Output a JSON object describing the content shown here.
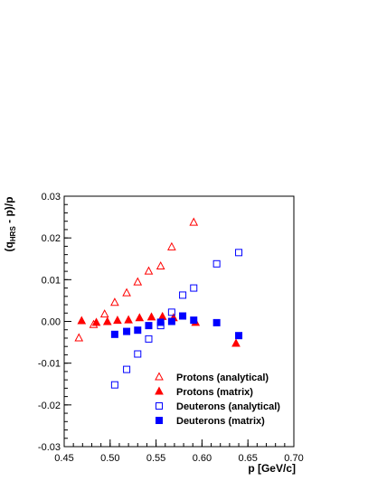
{
  "chart_data": {
    "type": "scatter",
    "xlabel": "p [GeV/c]",
    "ylabel": {
      "prefix": "(q",
      "subscript": "HRS",
      "suffix": " - p)/p"
    },
    "xlim": [
      0.45,
      0.7
    ],
    "ylim": [
      -0.03,
      0.03
    ],
    "x_ticks": [
      0.45,
      0.5,
      0.55,
      0.6,
      0.65,
      0.7
    ],
    "x_tick_labels": [
      "0.45",
      "0.50",
      "0.55",
      "0.60",
      "0.65",
      "0.70"
    ],
    "y_ticks": [
      -0.03,
      -0.02,
      -0.01,
      0.0,
      0.01,
      0.02,
      0.03
    ],
    "y_tick_labels": [
      "-0.03",
      "-0.02",
      "-0.01",
      "0.00",
      "0.01",
      "0.02",
      "0.03"
    ],
    "grid": false,
    "legend_position": "bottom-right",
    "series": [
      {
        "name": "Protons (analytical)",
        "marker": "open-triangle",
        "color": "#ff0000",
        "points": [
          [
            0.466,
            -0.004
          ],
          [
            0.482,
            -0.0008
          ],
          [
            0.494,
            0.0017
          ],
          [
            0.505,
            0.0045
          ],
          [
            0.518,
            0.0068
          ],
          [
            0.53,
            0.0094
          ],
          [
            0.542,
            0.012
          ],
          [
            0.555,
            0.0132
          ],
          [
            0.567,
            0.0178
          ],
          [
            0.591,
            0.0237
          ]
        ]
      },
      {
        "name": "Protons (matrix)",
        "marker": "filled-triangle",
        "color": "#ff0000",
        "points": [
          [
            0.469,
            0.0001
          ],
          [
            0.485,
            -0.0003
          ],
          [
            0.497,
            -0.0001
          ],
          [
            0.508,
            0.0002
          ],
          [
            0.52,
            0.0003
          ],
          [
            0.532,
            0.0008
          ],
          [
            0.545,
            0.001
          ],
          [
            0.557,
            0.0011
          ],
          [
            0.569,
            0.0008
          ],
          [
            0.593,
            -0.0003
          ],
          [
            0.637,
            -0.0053
          ]
        ]
      },
      {
        "name": "Deuterons (analytical)",
        "marker": "open-square",
        "color": "#0000ff",
        "points": [
          [
            0.505,
            -0.0152
          ],
          [
            0.518,
            -0.0115
          ],
          [
            0.53,
            -0.0078
          ],
          [
            0.542,
            -0.0042
          ],
          [
            0.555,
            -0.001
          ],
          [
            0.567,
            0.0022
          ],
          [
            0.579,
            0.0063
          ],
          [
            0.591,
            0.008
          ],
          [
            0.616,
            0.0138
          ],
          [
            0.64,
            0.0165
          ]
        ]
      },
      {
        "name": "Deuterons (matrix)",
        "marker": "filled-square",
        "color": "#0000ff",
        "points": [
          [
            0.505,
            -0.0031
          ],
          [
            0.518,
            -0.0024
          ],
          [
            0.53,
            -0.0021
          ],
          [
            0.542,
            -0.001
          ],
          [
            0.555,
            -0.0002
          ],
          [
            0.567,
            0.0
          ],
          [
            0.579,
            0.0013
          ],
          [
            0.591,
            0.0003
          ],
          [
            0.616,
            -0.0003
          ],
          [
            0.64,
            -0.0034
          ]
        ]
      }
    ]
  }
}
